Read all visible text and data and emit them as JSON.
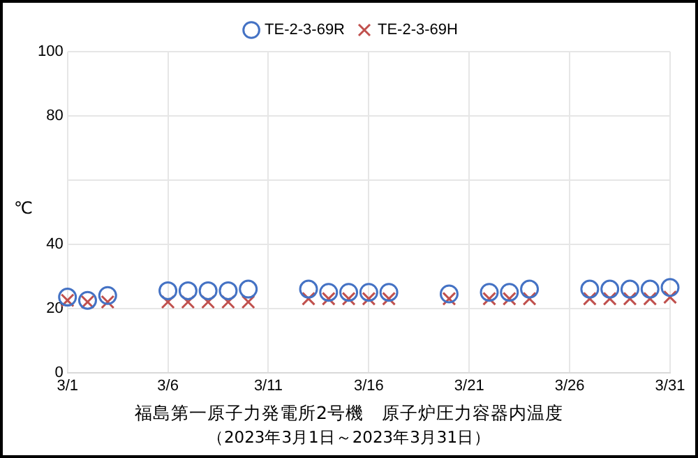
{
  "chart_data": {
    "type": "scatter",
    "title": "福島第一原子力発電所2号機　原子炉圧力容器内温度",
    "subtitle": "（2023年3月1日～2023年3月31日）",
    "ylabel": "℃",
    "categories": [
      "3/1",
      null,
      null,
      null,
      null,
      "3/6",
      null,
      null,
      null,
      null,
      "3/11",
      null,
      null,
      null,
      null,
      "3/16",
      null,
      null,
      null,
      null,
      "3/21",
      null,
      null,
      null,
      null,
      "3/26",
      null,
      null,
      null,
      null,
      "3/31"
    ],
    "series": [
      {
        "name": "TE-2-3-69R",
        "color": "#4472c4",
        "marker": "circle",
        "values": [
          23.5,
          22.5,
          24,
          null,
          null,
          25.5,
          25.5,
          25.5,
          25.5,
          26,
          null,
          null,
          26,
          25,
          25,
          25,
          25,
          null,
          null,
          24.5,
          null,
          25,
          25,
          26,
          null,
          null,
          26,
          26,
          26,
          26,
          26.5
        ]
      },
      {
        "name": "TE-2-3-69H",
        "color": "#c0504d",
        "marker": "cross",
        "values": [
          22.5,
          22,
          22,
          null,
          null,
          22,
          22,
          22,
          22,
          22,
          null,
          null,
          23,
          23,
          23,
          23,
          23,
          null,
          null,
          23,
          null,
          23,
          23,
          23,
          null,
          null,
          23,
          23,
          23,
          23,
          23.5
        ]
      }
    ],
    "ylim": [
      0,
      100
    ],
    "yticks": [
      0,
      20,
      40,
      {
        "value": 60,
        "label": null
      },
      80,
      100
    ],
    "grid": true,
    "legend": "top"
  }
}
